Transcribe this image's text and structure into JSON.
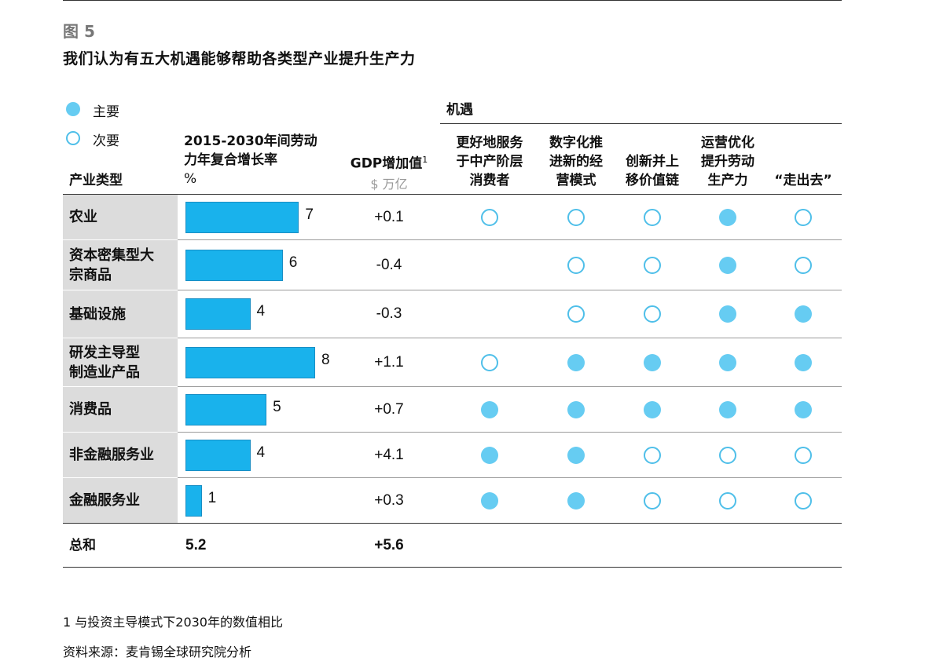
{
  "figure_label": "图 5",
  "title": "我们认为有五大机遇能够帮助各类型产业提升生产力",
  "legend": {
    "primary": "主要",
    "secondary": "次要"
  },
  "headers": {
    "industry": "产业类型",
    "growth": "2015-2030年间劳动力年复合增长率",
    "growth_lines": [
      "2015-2030年间劳动",
      "力年复合增长率",
      "%"
    ],
    "gdp": "GDP增加值",
    "gdp_footnote_mark": "1",
    "gdp_unit": "$ 万亿",
    "opportunities": "机遇",
    "opportunity_columns": [
      [
        "更好地服务",
        "于中产阶层",
        "消费者"
      ],
      [
        "数字化推",
        "进新的经",
        "营模式"
      ],
      [
        "创新并上",
        "移价值链"
      ],
      [
        "运营优化",
        "提升劳动",
        "生产力"
      ],
      [
        "“走出去”"
      ]
    ]
  },
  "chart_data": {
    "type": "table",
    "columns": [
      "产业类型",
      "2015-2030年间劳动力年复合增长率 %",
      "GDP增加值 $ 万亿",
      "更好地服务于中产阶层消费者",
      "数字化推进新的经营模式",
      "创新并上移价值链",
      "运营优化提升劳动生产力",
      "“走出去”"
    ],
    "rows": [
      {
        "industry": [
          "农业"
        ],
        "growth": 7,
        "growth_label": "7",
        "gdp": "+0.1",
        "opportunities": [
          "secondary",
          "secondary",
          "secondary",
          "primary",
          "secondary"
        ]
      },
      {
        "industry": [
          "资本密集型大",
          "宗商品"
        ],
        "growth": 6,
        "growth_label": "6",
        "gdp": "-0.4",
        "opportunities": [
          null,
          "secondary",
          "secondary",
          "primary",
          "secondary"
        ]
      },
      {
        "industry": [
          "基础设施"
        ],
        "growth": 4,
        "growth_label": "4",
        "gdp": "-0.3",
        "opportunities": [
          null,
          "secondary",
          "secondary",
          "primary",
          "primary"
        ]
      },
      {
        "industry": [
          "研发主导型",
          "制造业产品"
        ],
        "growth": 8,
        "growth_label": "8",
        "gdp": "+1.1",
        "opportunities": [
          "secondary",
          "primary",
          "primary",
          "primary",
          "primary"
        ]
      },
      {
        "industry": [
          "消费品"
        ],
        "growth": 5,
        "growth_label": "5",
        "gdp": "+0.7",
        "opportunities": [
          "primary",
          "primary",
          "primary",
          "primary",
          "primary"
        ]
      },
      {
        "industry": [
          "非金融服务业"
        ],
        "growth": 4,
        "growth_label": "4",
        "gdp": "+4.1",
        "opportunities": [
          "primary",
          "primary",
          "secondary",
          "secondary",
          "secondary"
        ]
      },
      {
        "industry": [
          "金融服务业"
        ],
        "growth": 1,
        "growth_label": "1",
        "gdp": "+0.3",
        "opportunities": [
          "primary",
          "primary",
          "secondary",
          "secondary",
          "secondary"
        ]
      }
    ],
    "total": {
      "label": "总和",
      "growth": "5.2",
      "gdp": "+5.6"
    }
  },
  "colors": {
    "bar": "#19b2ec",
    "primary_dot": "#66ccf2",
    "secondary_dot": "#4fbfe9",
    "row_label_bg": "#dcdcdc",
    "figure_label": "#777777"
  },
  "footnote": "1 与投资主导模式下2030年的数值相比",
  "source": "资料来源：麦肯锡全球研究院分析"
}
